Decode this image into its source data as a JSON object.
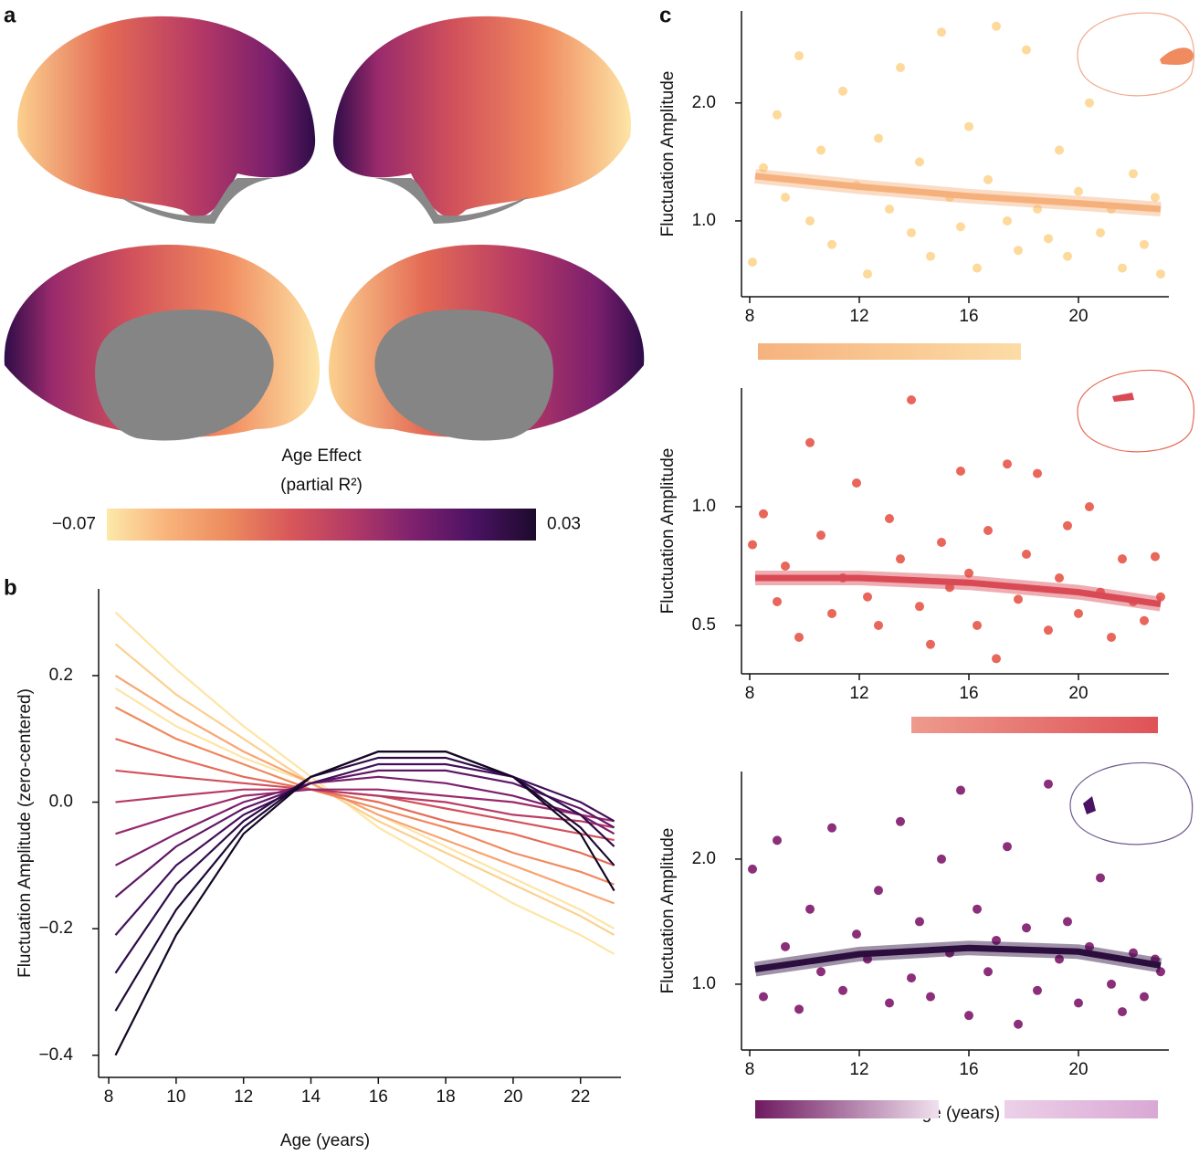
{
  "panel_labels": [
    "a",
    "b",
    "c"
  ],
  "chart_data": [
    {
      "type": "colorbar",
      "title": "Age Effect",
      "subtitle": "(partial R²)",
      "lim": [
        -0.07,
        0.03
      ],
      "ticks": [
        {
          "value": -0.07,
          "label": "−0.07"
        },
        {
          "value": 0.03,
          "label": "0.03"
        }
      ],
      "colors": [
        "#fde8aa",
        "#f8b27a",
        "#ec8a5e",
        "#d8575a",
        "#b23a66",
        "#7e216e",
        "#4a1262",
        "#1c0a2c"
      ]
    },
    {
      "type": "line",
      "xlabel": "Age (years)",
      "ylabel": "Fluctuation Amplitude (zero-centered)",
      "x": [
        8.2,
        10,
        12,
        14,
        16,
        18,
        20,
        22,
        23
      ],
      "xlim": [
        7.7,
        23.2
      ],
      "xticks": [
        8,
        10,
        12,
        14,
        16,
        18,
        20,
        22
      ],
      "ylim": [
        -0.435,
        0.337
      ],
      "yticks": [
        {
          "value": -0.4,
          "label": "−0.4"
        },
        {
          "value": -0.2,
          "label": "−0.2"
        },
        {
          "value": 0,
          "label": "0.0"
        },
        0.2
      ],
      "series": [
        {
          "color": "#fde5a6",
          "values": [
            0.3,
            0.21,
            0.12,
            0.04,
            -0.04,
            -0.1,
            -0.16,
            -0.21,
            -0.24
          ]
        },
        {
          "color": "#fbd08f",
          "values": [
            0.25,
            0.17,
            0.1,
            0.03,
            -0.03,
            -0.08,
            -0.13,
            -0.18,
            -0.21
          ]
        },
        {
          "color": "#fde5a6",
          "values": [
            0.18,
            0.12,
            0.07,
            0.03,
            -0.02,
            -0.07,
            -0.12,
            -0.17,
            -0.2
          ]
        },
        {
          "color": "#f7a572",
          "values": [
            0.2,
            0.14,
            0.08,
            0.03,
            -0.02,
            -0.06,
            -0.1,
            -0.14,
            -0.16
          ]
        },
        {
          "color": "#f08a5f",
          "values": [
            0.15,
            0.1,
            0.06,
            0.02,
            -0.01,
            -0.04,
            -0.08,
            -0.11,
            -0.13
          ]
        },
        {
          "color": "#e46b55",
          "values": [
            0.1,
            0.07,
            0.04,
            0.02,
            0.0,
            -0.03,
            -0.05,
            -0.08,
            -0.1
          ]
        },
        {
          "color": "#d1505b",
          "values": [
            0.05,
            0.04,
            0.03,
            0.02,
            0.01,
            -0.01,
            -0.03,
            -0.05,
            -0.06
          ]
        },
        {
          "color": "#b73a65",
          "values": [
            0.0,
            0.01,
            0.02,
            0.02,
            0.01,
            0.0,
            -0.02,
            -0.03,
            -0.04
          ]
        },
        {
          "color": "#992a6c",
          "values": [
            -0.05,
            -0.02,
            0.01,
            0.02,
            0.02,
            0.01,
            0.0,
            -0.02,
            -0.03
          ]
        },
        {
          "color": "#7a1f6d",
          "values": [
            -0.1,
            -0.05,
            0.0,
            0.03,
            0.04,
            0.03,
            0.01,
            -0.02,
            -0.05
          ]
        },
        {
          "color": "#5e1765",
          "values": [
            -0.15,
            -0.07,
            -0.01,
            0.03,
            0.05,
            0.05,
            0.03,
            -0.01,
            -0.04
          ]
        },
        {
          "color": "#42105a",
          "values": [
            -0.21,
            -0.1,
            -0.02,
            0.03,
            0.06,
            0.06,
            0.04,
            0.0,
            -0.03
          ]
        },
        {
          "color": "#2e0c48",
          "values": [
            -0.27,
            -0.13,
            -0.03,
            0.04,
            0.07,
            0.07,
            0.04,
            -0.02,
            -0.07
          ]
        },
        {
          "color": "#1e0a35",
          "values": [
            -0.33,
            -0.17,
            -0.04,
            0.04,
            0.08,
            0.08,
            0.04,
            -0.04,
            -0.1
          ]
        },
        {
          "color": "#150724",
          "values": [
            -0.4,
            -0.21,
            -0.05,
            0.04,
            0.08,
            0.08,
            0.04,
            -0.05,
            -0.14
          ]
        }
      ]
    },
    {
      "type": "scatter",
      "ylabel": "Fluctuation Amplitude",
      "xlim": [
        7.7,
        23.3
      ],
      "xticks": [
        8,
        12,
        16,
        20
      ],
      "ylim": [
        0.357,
        2.78
      ],
      "yticks": [
        {
          "value": 1,
          "label": "1.0"
        },
        {
          "value": 2,
          "label": "2.0"
        }
      ],
      "series": [
        {
          "type": "scatter",
          "color": "#fdd99b",
          "x": [
            8.1,
            8.5,
            9.0,
            9.3,
            9.8,
            10.2,
            10.6,
            11.0,
            11.4,
            11.9,
            12.3,
            12.7,
            13.1,
            13.5,
            13.9,
            14.2,
            14.6,
            15.0,
            15.3,
            15.7,
            16.0,
            16.3,
            16.7,
            17.0,
            17.4,
            17.8,
            18.1,
            18.5,
            18.9,
            19.3,
            19.6,
            20.0,
            20.4,
            20.8,
            21.2,
            21.6,
            22.0,
            22.4,
            22.8,
            23.0
          ],
          "values": [
            0.65,
            1.45,
            1.9,
            1.2,
            2.4,
            1.0,
            1.6,
            0.8,
            2.1,
            1.3,
            0.55,
            1.7,
            1.1,
            2.3,
            0.9,
            1.5,
            0.7,
            2.6,
            1.2,
            0.95,
            1.8,
            0.6,
            1.35,
            2.65,
            1.0,
            0.75,
            2.45,
            1.1,
            0.85,
            1.6,
            0.7,
            1.25,
            2.0,
            0.9,
            1.1,
            0.6,
            1.4,
            0.8,
            1.2,
            0.55
          ]
        },
        {
          "type": "line",
          "color": "#f5b07c",
          "x": [
            8.2,
            12,
            16,
            20,
            23
          ],
          "values": [
            1.38,
            1.29,
            1.21,
            1.15,
            1.1
          ]
        }
      ],
      "bands": [
        {
          "range": [
            8.3,
            17.9
          ],
          "colors": [
            "#f6b27e",
            "#fcdca6"
          ]
        }
      ]
    },
    {
      "type": "scatter",
      "ylabel": "Fluctuation Amplitude",
      "xlim": [
        7.7,
        23.3
      ],
      "xticks": [
        8,
        12,
        16,
        20
      ],
      "ylim": [
        0.296,
        1.5
      ],
      "yticks": [
        0.5,
        {
          "value": 1,
          "label": "1.0"
        }
      ],
      "series": [
        {
          "type": "scatter",
          "color": "#e8665a",
          "x": [
            8.1,
            8.5,
            9.0,
            9.3,
            9.8,
            10.2,
            10.6,
            11.0,
            11.4,
            11.9,
            12.3,
            12.7,
            13.1,
            13.5,
            13.9,
            14.2,
            14.6,
            15.0,
            15.3,
            15.7,
            16.0,
            16.3,
            16.7,
            17.0,
            17.4,
            17.8,
            18.1,
            18.5,
            18.9,
            19.3,
            19.6,
            20.0,
            20.4,
            20.8,
            21.2,
            21.6,
            22.0,
            22.4,
            22.8,
            23.0
          ],
          "values": [
            0.84,
            0.97,
            0.6,
            0.75,
            0.45,
            1.27,
            0.88,
            0.55,
            0.7,
            1.1,
            0.62,
            0.5,
            0.95,
            0.78,
            1.45,
            0.58,
            0.42,
            0.85,
            0.66,
            1.15,
            0.72,
            0.5,
            0.9,
            0.36,
            1.18,
            0.61,
            0.8,
            1.14,
            0.48,
            0.7,
            0.92,
            0.55,
            1.0,
            0.64,
            0.45,
            0.78,
            0.6,
            0.52,
            0.79,
            0.62
          ]
        },
        {
          "type": "line",
          "color": "#d94a55",
          "x": [
            8.2,
            12,
            16,
            20,
            23
          ],
          "values": [
            0.7,
            0.7,
            0.68,
            0.64,
            0.59
          ]
        }
      ],
      "bands": [
        {
          "range": [
            13.9,
            22.9
          ],
          "colors": [
            "#ee9a8c",
            "#de5258"
          ]
        }
      ]
    },
    {
      "type": "scatter",
      "ylabel": "Fluctuation Amplitude",
      "xlabel": "Age (years)",
      "xlim": [
        7.7,
        23.3
      ],
      "xticks": [
        8,
        12,
        16,
        20
      ],
      "ylim": [
        0.474,
        2.7
      ],
      "yticks": [
        {
          "value": 1,
          "label": "1.0"
        },
        {
          "value": 2,
          "label": "2.0"
        }
      ],
      "series": [
        {
          "type": "scatter",
          "color": "#8b2f7a",
          "x": [
            8.1,
            8.5,
            9.0,
            9.3,
            9.8,
            10.2,
            10.6,
            11.0,
            11.4,
            11.9,
            12.3,
            12.7,
            13.1,
            13.5,
            13.9,
            14.2,
            14.6,
            15.0,
            15.3,
            15.7,
            16.0,
            16.3,
            16.7,
            17.0,
            17.4,
            17.8,
            18.1,
            18.5,
            18.9,
            19.3,
            19.6,
            20.0,
            20.4,
            20.8,
            21.2,
            21.6,
            22.0,
            22.4,
            22.8,
            23.0
          ],
          "values": [
            1.92,
            0.9,
            2.15,
            1.3,
            0.8,
            1.6,
            1.1,
            2.25,
            0.95,
            1.4,
            1.2,
            1.75,
            0.85,
            2.3,
            1.05,
            1.5,
            0.9,
            2.0,
            1.25,
            2.55,
            0.75,
            1.6,
            1.1,
            1.35,
            2.1,
            0.68,
            1.45,
            0.95,
            2.6,
            1.2,
            1.5,
            0.85,
            1.3,
            1.85,
            1.0,
            0.78,
            1.25,
            0.9,
            1.2,
            1.1
          ]
        },
        {
          "type": "line",
          "color": "#2b0d3e",
          "x": [
            8.2,
            12,
            16,
            20,
            23
          ],
          "values": [
            1.12,
            1.24,
            1.29,
            1.26,
            1.15
          ]
        }
      ],
      "bands": [
        {
          "range": [
            8.2,
            14.9
          ],
          "colors": [
            "#6e1a60",
            "#f0e0ee"
          ]
        },
        {
          "range": [
            17.3,
            22.9
          ],
          "colors": [
            "#ecd0e8",
            "#d9a8d4"
          ]
        }
      ]
    }
  ]
}
